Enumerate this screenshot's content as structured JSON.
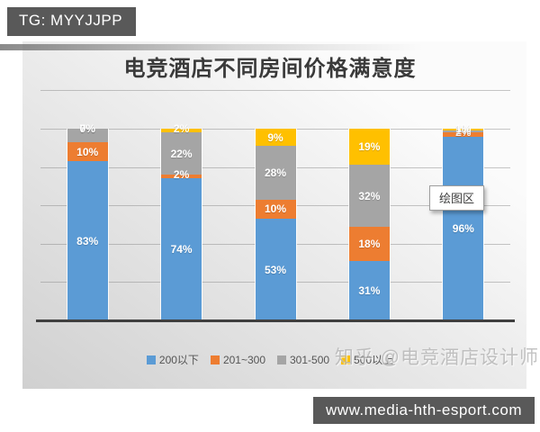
{
  "badge": {
    "text": "TG: MYYJJPP"
  },
  "chart_data": {
    "type": "bar",
    "stacked": true,
    "units": "percent",
    "title": "电竞酒店不同房间价格满意度",
    "categories": [
      "",
      "",
      "",
      "",
      ""
    ],
    "series": [
      {
        "name": "200以下",
        "color": "#5B9BD5",
        "values": [
          83,
          74,
          53,
          31,
          96
        ]
      },
      {
        "name": "201~300",
        "color": "#ED7D31",
        "values": [
          10,
          2,
          10,
          18,
          2
        ]
      },
      {
        "name": "301-500",
        "color": "#A5A5A5",
        "values": [
          7,
          22,
          28,
          32,
          1
        ]
      },
      {
        "name": "500以上",
        "color": "#FFC000",
        "values": [
          0,
          2,
          9,
          19,
          1
        ]
      }
    ],
    "data_labels": "percent-on-segment",
    "ylim": [
      0,
      120
    ],
    "gridline_step": 20,
    "grid": true,
    "legend_position": "bottom"
  },
  "tooltip": {
    "text": "绘图区"
  },
  "watermark": {
    "text": "知乎 @电竞酒店设计师"
  },
  "footer": {
    "url": "www.media-hth-esport.com"
  },
  "colors": {
    "bar_blue": "#5B9BD5",
    "bar_orange": "#ED7D31",
    "bar_gray": "#A5A5A5",
    "bar_yellow": "#FFC000",
    "badge_bg": "#595959",
    "axis_line": "#3f3f3f"
  }
}
